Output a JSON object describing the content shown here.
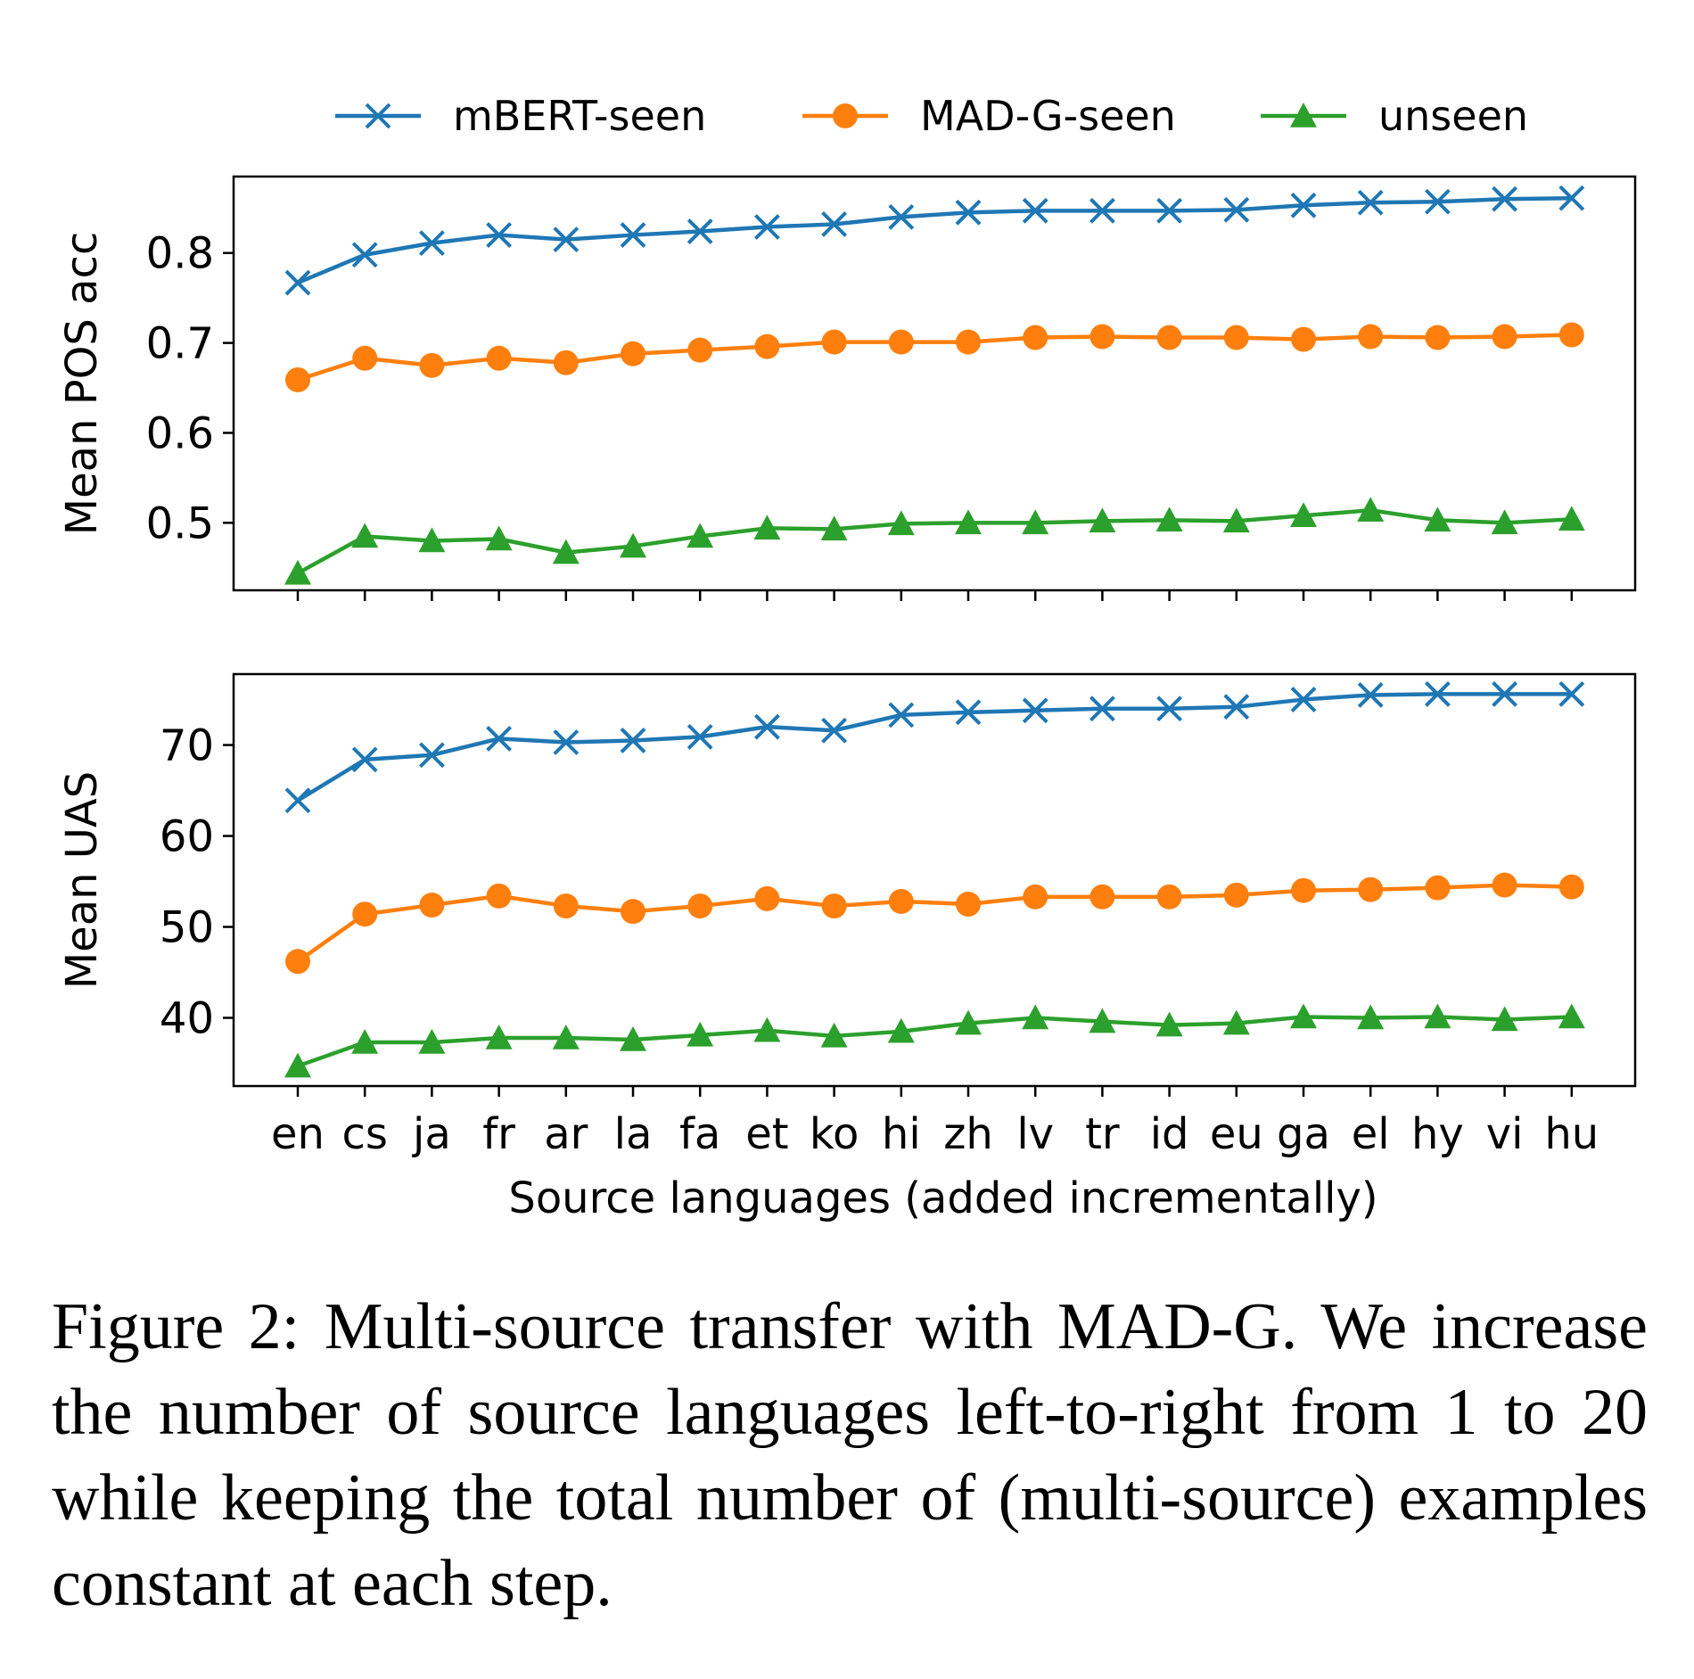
{
  "chart_data": [
    {
      "type": "line",
      "ylabel": "Mean POS acc",
      "xlabel": "",
      "ylim": [
        0.425,
        0.885
      ],
      "yticks": [
        0.5,
        0.6,
        0.7,
        0.8
      ],
      "ytick_labels": [
        "0.5",
        "0.6",
        "0.7",
        "0.8"
      ],
      "categories": [
        "en",
        "cs",
        "ja",
        "fr",
        "ar",
        "la",
        "fa",
        "et",
        "ko",
        "hi",
        "zh",
        "lv",
        "tr",
        "id",
        "eu",
        "ga",
        "el",
        "hy",
        "vi",
        "hu"
      ],
      "show_xtick_labels": false,
      "series": [
        {
          "name": "mBERT-seen",
          "color": "#1f77b4",
          "marker": "x",
          "values": [
            0.767,
            0.798,
            0.811,
            0.82,
            0.815,
            0.82,
            0.824,
            0.829,
            0.832,
            0.84,
            0.845,
            0.847,
            0.847,
            0.847,
            0.848,
            0.853,
            0.856,
            0.857,
            0.86,
            0.861
          ]
        },
        {
          "name": "MAD-G-seen",
          "color": "#ff7f0e",
          "marker": "o",
          "values": [
            0.659,
            0.683,
            0.675,
            0.683,
            0.678,
            0.688,
            0.692,
            0.696,
            0.701,
            0.701,
            0.701,
            0.706,
            0.707,
            0.706,
            0.706,
            0.704,
            0.707,
            0.706,
            0.707,
            0.709
          ]
        },
        {
          "name": "unseen",
          "color": "#2ca02c",
          "marker": "^",
          "values": [
            0.444,
            0.485,
            0.48,
            0.482,
            0.467,
            0.474,
            0.485,
            0.494,
            0.493,
            0.499,
            0.5,
            0.5,
            0.502,
            0.503,
            0.502,
            0.508,
            0.514,
            0.503,
            0.5,
            0.504
          ]
        }
      ]
    },
    {
      "type": "line",
      "ylabel": "Mean UAS",
      "xlabel": "Source languages (added incrementally)",
      "ylim": [
        32.5,
        77.8
      ],
      "yticks": [
        40,
        50,
        60,
        70
      ],
      "ytick_labels": [
        "40",
        "50",
        "60",
        "70"
      ],
      "categories": [
        "en",
        "cs",
        "ja",
        "fr",
        "ar",
        "la",
        "fa",
        "et",
        "ko",
        "hi",
        "zh",
        "lv",
        "tr",
        "id",
        "eu",
        "ga",
        "el",
        "hy",
        "vi",
        "hu"
      ],
      "show_xtick_labels": true,
      "series": [
        {
          "name": "mBERT-seen",
          "color": "#1f77b4",
          "marker": "x",
          "values": [
            63.9,
            68.4,
            68.9,
            70.7,
            70.3,
            70.5,
            70.9,
            72.0,
            71.6,
            73.3,
            73.6,
            73.8,
            74.0,
            74.0,
            74.2,
            75.0,
            75.5,
            75.6,
            75.6,
            75.6
          ]
        },
        {
          "name": "MAD-G-seen",
          "color": "#ff7f0e",
          "marker": "o",
          "values": [
            46.2,
            51.4,
            52.4,
            53.4,
            52.3,
            51.7,
            52.3,
            53.1,
            52.3,
            52.8,
            52.5,
            53.3,
            53.3,
            53.3,
            53.5,
            54.0,
            54.1,
            54.3,
            54.6,
            54.4
          ]
        },
        {
          "name": "unseen",
          "color": "#2ca02c",
          "marker": "^",
          "values": [
            34.7,
            37.3,
            37.3,
            37.8,
            37.8,
            37.6,
            38.1,
            38.6,
            38.0,
            38.5,
            39.4,
            40.0,
            39.6,
            39.2,
            39.4,
            40.1,
            40.0,
            40.1,
            39.8,
            40.1
          ]
        }
      ]
    }
  ],
  "legend": {
    "placement": "top-center",
    "entries": [
      "mBERT-seen",
      "MAD-G-seen",
      "unseen"
    ]
  },
  "caption": "Figure 2: Multi-source transfer with MAD-G. We increase the number of source languages left-to-right from 1 to 20 while keeping the total number of (multi-source) examples constant at each step."
}
